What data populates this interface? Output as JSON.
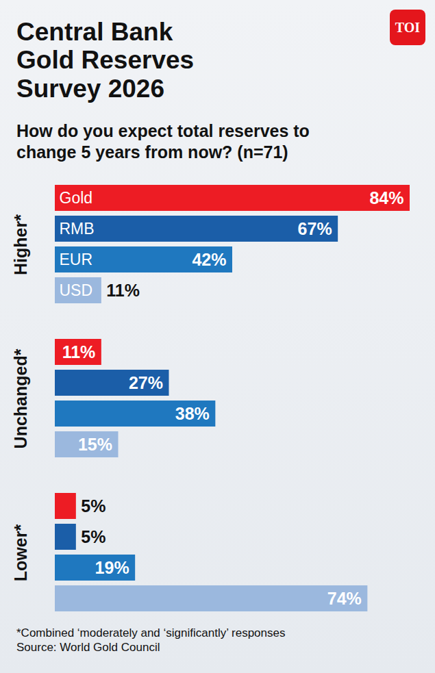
{
  "chart_data": {
    "type": "bar",
    "orientation": "horizontal",
    "title": "Central Bank Gold Reserves Survey 2026",
    "subtitle": "How do you expect total reserves to change 5 years from now? (n=71)",
    "logo": "TOI",
    "footnote": "*Combined ‘moderately and ‘significantly’ responses",
    "source": "Source: World Gold Council",
    "categories": [
      "Higher*",
      "Unchanged*",
      "Lower*"
    ],
    "series": [
      {
        "name": "Gold",
        "color": "#ed1c24",
        "values": [
          84,
          11,
          5
        ],
        "value_labels": [
          "84%",
          "11%",
          "5%"
        ]
      },
      {
        "name": "RMB",
        "color": "#1b5ea8",
        "values": [
          67,
          27,
          5
        ],
        "value_labels": [
          "67%",
          "27%",
          "5%"
        ]
      },
      {
        "name": "EUR",
        "color": "#1f78bf",
        "values": [
          42,
          38,
          19
        ],
        "value_labels": [
          "42%",
          "38%",
          "19%"
        ]
      },
      {
        "name": "USD",
        "color": "#9bb8de",
        "values": [
          11,
          15,
          74
        ],
        "value_labels": [
          "11%",
          "15%",
          "74%"
        ]
      }
    ],
    "xlim": [
      0,
      84
    ],
    "xticks": [],
    "tick_labels": false,
    "grid": false,
    "data_labels": true
  }
}
